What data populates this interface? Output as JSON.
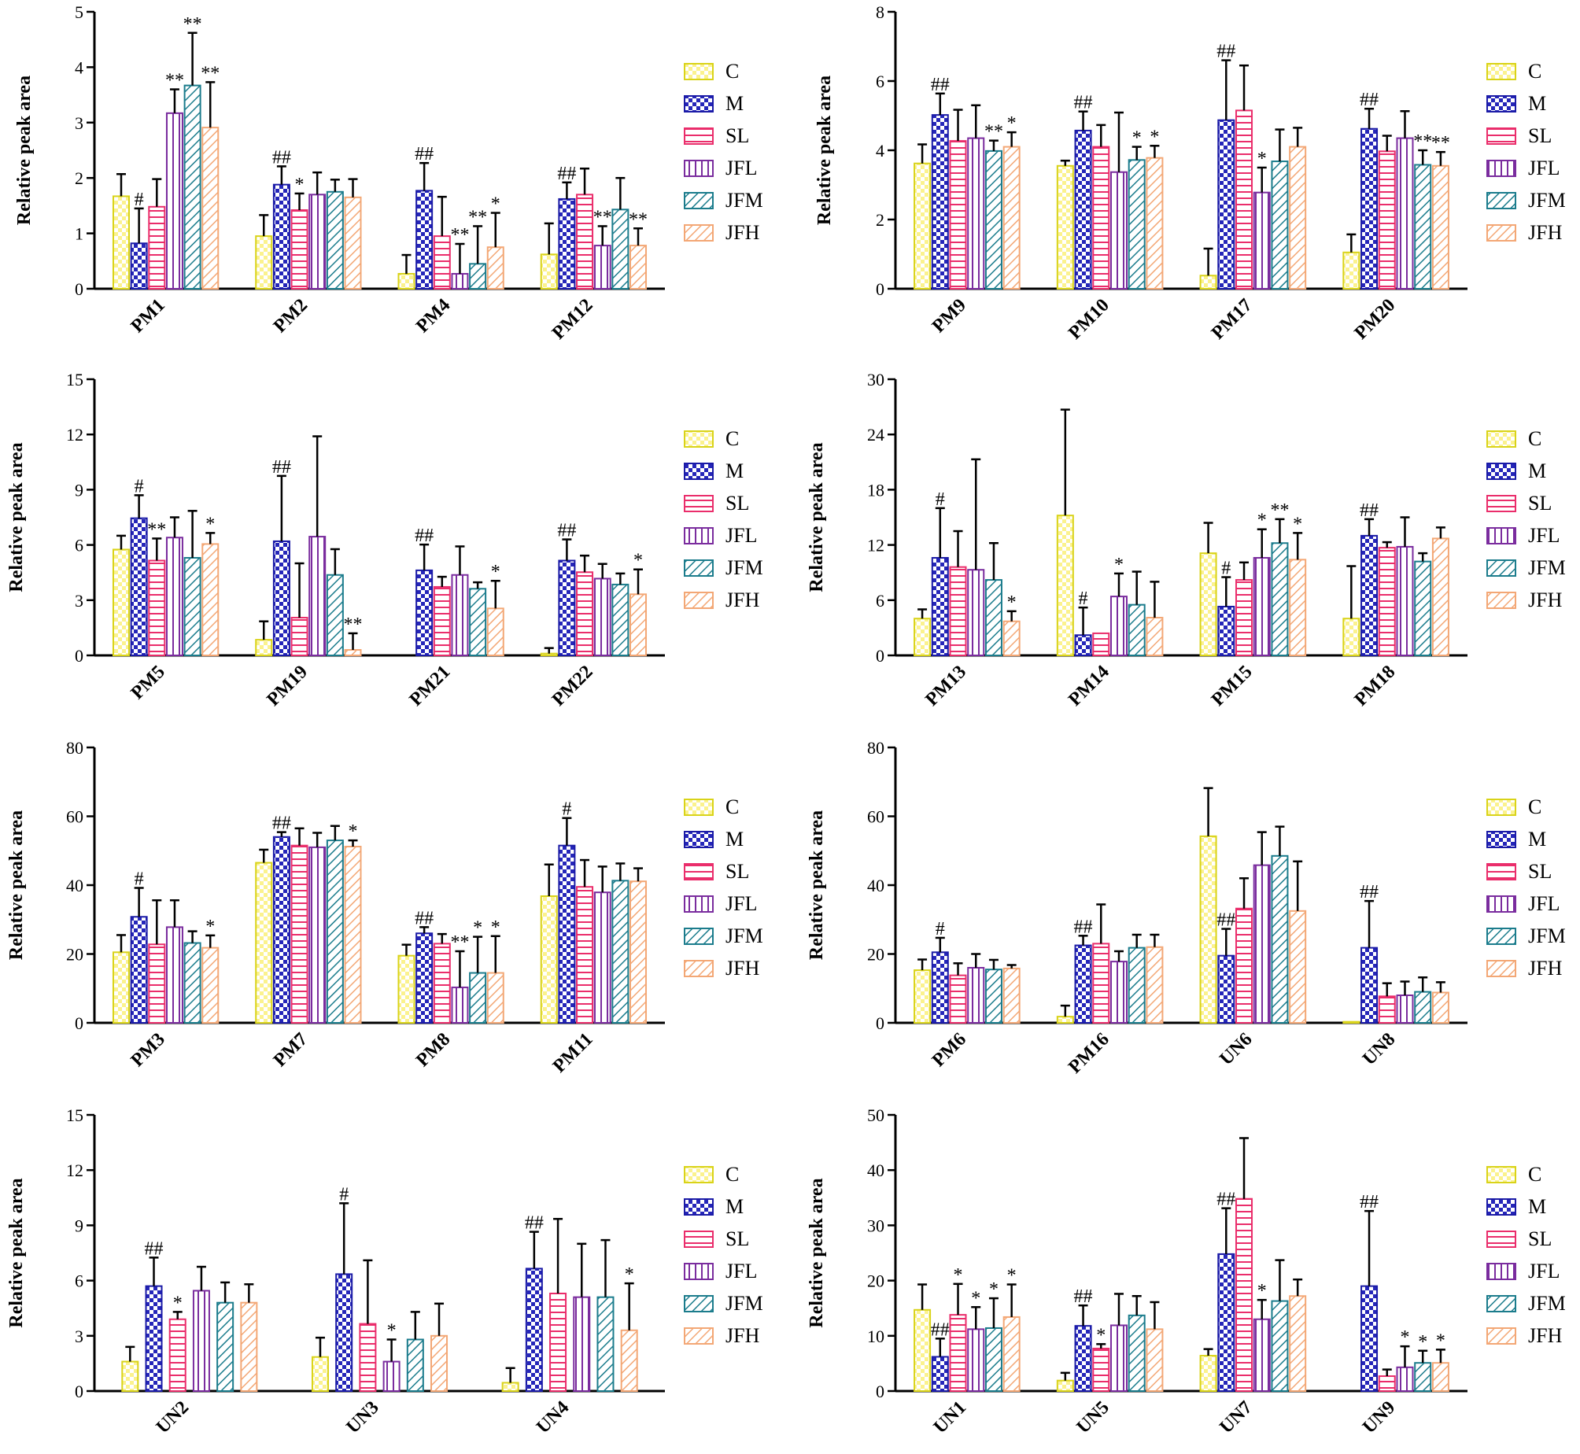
{
  "figure": {
    "legend_entries": [
      "C",
      "M",
      "SL",
      "JFL",
      "JFM",
      "JFH"
    ]
  },
  "styles": {
    "C": {
      "stroke": "#d9d319",
      "fill": "#fbf28e",
      "pattern": "checker"
    },
    "M": {
      "stroke": "#1a1aa6",
      "fill": "#2526b9",
      "pattern": "checker-dark"
    },
    "SL": {
      "stroke": "#ea2d6b",
      "fill": "#ffffff",
      "pattern": "hlines"
    },
    "JFL": {
      "stroke": "#7a2c9e",
      "fill": "#ffffff",
      "pattern": "vlines"
    },
    "JFM": {
      "stroke": "#1b7c8c",
      "fill": "#ffffff",
      "pattern": "diag"
    },
    "JFH": {
      "stroke": "#f3a775",
      "fill": "#ffffff",
      "pattern": "diag"
    }
  },
  "chart_data": [
    {
      "type": "bar",
      "ylabel": "Relative peak area",
      "ylim": [
        0,
        5
      ],
      "yticks": [
        0,
        1,
        2,
        3,
        4,
        5
      ],
      "categories": [
        "PM1",
        "PM2",
        "PM4",
        "PM12"
      ],
      "series": [
        {
          "name": "C",
          "values": [
            1.67,
            0.95,
            0.27,
            0.62
          ],
          "errors": [
            0.4,
            0.38,
            0.34,
            0.56
          ],
          "labels": [
            "",
            "",
            "",
            ""
          ]
        },
        {
          "name": "M",
          "values": [
            0.82,
            1.88,
            1.77,
            1.62
          ],
          "errors": [
            0.63,
            0.33,
            0.5,
            0.3
          ],
          "labels": [
            "#",
            "##",
            "##",
            "##"
          ]
        },
        {
          "name": "SL",
          "values": [
            1.48,
            1.42,
            0.95,
            1.7
          ],
          "errors": [
            0.5,
            0.3,
            0.71,
            0.47
          ],
          "labels": [
            "",
            "*",
            "",
            ""
          ]
        },
        {
          "name": "JFL",
          "values": [
            3.17,
            1.7,
            0.27,
            0.78
          ],
          "errors": [
            0.43,
            0.4,
            0.54,
            0.35
          ],
          "labels": [
            "**",
            "",
            "**",
            "**"
          ]
        },
        {
          "name": "JFM",
          "values": [
            3.67,
            1.75,
            0.45,
            1.43
          ],
          "errors": [
            0.95,
            0.22,
            0.68,
            0.57
          ],
          "labels": [
            "**",
            "",
            "**",
            ""
          ]
        },
        {
          "name": "JFH",
          "values": [
            2.91,
            1.65,
            0.75,
            0.78
          ],
          "errors": [
            0.82,
            0.33,
            0.62,
            0.31
          ],
          "labels": [
            "**",
            "",
            "*",
            "**"
          ]
        }
      ]
    },
    {
      "type": "bar",
      "ylabel": "Relative peak area",
      "ylim": [
        0,
        8
      ],
      "yticks": [
        0,
        2,
        4,
        6,
        8
      ],
      "categories": [
        "PM9",
        "PM10",
        "PM17",
        "PM20"
      ],
      "series": [
        {
          "name": "C",
          "values": [
            3.62,
            3.55,
            0.38,
            1.05
          ],
          "errors": [
            0.55,
            0.15,
            0.78,
            0.52
          ],
          "labels": [
            "",
            "",
            "",
            ""
          ]
        },
        {
          "name": "M",
          "values": [
            5.02,
            4.57,
            4.87,
            4.62
          ],
          "errors": [
            0.62,
            0.55,
            1.73,
            0.58
          ],
          "labels": [
            "##",
            "##",
            "##",
            "##"
          ]
        },
        {
          "name": "SL",
          "values": [
            4.27,
            4.1,
            5.15,
            3.97
          ],
          "errors": [
            0.9,
            0.63,
            1.3,
            0.45
          ],
          "labels": [
            "",
            "",
            "",
            ""
          ]
        },
        {
          "name": "JFL",
          "values": [
            4.35,
            3.37,
            2.78,
            4.35
          ],
          "errors": [
            0.95,
            1.72,
            0.72,
            0.78
          ],
          "labels": [
            "",
            "",
            "*",
            ""
          ]
        },
        {
          "name": "JFM",
          "values": [
            3.98,
            3.72,
            3.68,
            3.58
          ],
          "errors": [
            0.3,
            0.38,
            0.92,
            0.42
          ],
          "labels": [
            "**",
            "*",
            "",
            "**"
          ]
        },
        {
          "name": "JFH",
          "values": [
            4.1,
            3.78,
            4.1,
            3.55
          ],
          "errors": [
            0.42,
            0.35,
            0.55,
            0.4
          ],
          "labels": [
            "*",
            "*",
            "",
            "**"
          ]
        }
      ]
    },
    {
      "type": "bar",
      "ylabel": "Relative peak area",
      "ylim": [
        0,
        15
      ],
      "yticks": [
        0,
        3,
        6,
        9,
        12,
        15
      ],
      "categories": [
        "PM5",
        "PM19",
        "PM21",
        "PM22"
      ],
      "series": [
        {
          "name": "C",
          "values": [
            5.75,
            0.85,
            0.0,
            0.1
          ],
          "errors": [
            0.75,
            1.0,
            0.0,
            0.3
          ],
          "labels": [
            "",
            "",
            "",
            ""
          ]
        },
        {
          "name": "M",
          "values": [
            7.45,
            6.2,
            4.62,
            5.15
          ],
          "errors": [
            1.25,
            3.55,
            1.4,
            1.15
          ],
          "labels": [
            "#",
            "##",
            "##",
            "##"
          ]
        },
        {
          "name": "SL",
          "values": [
            5.15,
            2.05,
            3.72,
            4.52
          ],
          "errors": [
            1.2,
            2.95,
            0.55,
            0.9
          ],
          "labels": [
            "**",
            "",
            "",
            ""
          ]
        },
        {
          "name": "JFL",
          "values": [
            6.4,
            6.45,
            4.37,
            4.17
          ],
          "errors": [
            1.1,
            5.45,
            1.55,
            0.8
          ],
          "labels": [
            "",
            "",
            "",
            ""
          ]
        },
        {
          "name": "JFM",
          "values": [
            5.3,
            4.37,
            3.62,
            3.85
          ],
          "errors": [
            2.55,
            1.4,
            0.35,
            0.6
          ],
          "labels": [
            "",
            "",
            "",
            ""
          ]
        },
        {
          "name": "JFH",
          "values": [
            6.05,
            0.3,
            2.55,
            3.32
          ],
          "errors": [
            0.6,
            0.9,
            1.5,
            1.35
          ],
          "labels": [
            "*",
            "**",
            "*",
            "*"
          ]
        }
      ]
    },
    {
      "type": "bar",
      "ylabel": "Relative peak area",
      "ylim": [
        0,
        30
      ],
      "yticks": [
        0,
        6,
        12,
        18,
        24,
        30
      ],
      "categories": [
        "PM13",
        "PM14",
        "PM15",
        "PM18"
      ],
      "series": [
        {
          "name": "C",
          "values": [
            4.0,
            15.2,
            11.1,
            4.0
          ],
          "errors": [
            1.0,
            11.5,
            3.3,
            5.7
          ],
          "labels": [
            "",
            "",
            "",
            ""
          ]
        },
        {
          "name": "M",
          "values": [
            10.6,
            2.2,
            5.3,
            13.0
          ],
          "errors": [
            5.4,
            3.0,
            3.2,
            1.8
          ],
          "labels": [
            "#",
            "#",
            "#",
            "##"
          ]
        },
        {
          "name": "SL",
          "values": [
            9.6,
            2.4,
            8.2,
            11.7
          ],
          "errors": [
            3.9,
            0.0,
            1.9,
            0.6
          ],
          "labels": [
            "",
            "",
            "",
            ""
          ]
        },
        {
          "name": "JFL",
          "values": [
            9.3,
            6.4,
            10.6,
            11.8
          ],
          "errors": [
            12.0,
            2.5,
            3.1,
            3.2
          ],
          "labels": [
            "",
            "*",
            "*",
            ""
          ]
        },
        {
          "name": "JFM",
          "values": [
            8.2,
            5.5,
            12.2,
            10.2
          ],
          "errors": [
            4.0,
            3.6,
            2.6,
            0.9
          ],
          "labels": [
            "",
            "",
            "**",
            ""
          ]
        },
        {
          "name": "JFH",
          "values": [
            3.7,
            4.1,
            10.4,
            12.7
          ],
          "errors": [
            1.1,
            3.9,
            2.9,
            1.2
          ],
          "labels": [
            "*",
            "",
            "*",
            ""
          ]
        }
      ]
    },
    {
      "type": "bar",
      "ylabel": "Relative peak area",
      "ylim": [
        0,
        80
      ],
      "yticks": [
        0,
        20,
        40,
        60,
        80
      ],
      "categories": [
        "PM3",
        "PM7",
        "PM8",
        "PM11"
      ],
      "series": [
        {
          "name": "C",
          "values": [
            20.5,
            46.5,
            19.5,
            36.8
          ],
          "errors": [
            5.0,
            3.8,
            3.2,
            9.2
          ],
          "labels": [
            "",
            "",
            "",
            ""
          ]
        },
        {
          "name": "M",
          "values": [
            30.8,
            54.0,
            26.0,
            51.5
          ],
          "errors": [
            8.4,
            1.4,
            1.8,
            8.0
          ],
          "labels": [
            "#",
            "##",
            "##",
            "#"
          ]
        },
        {
          "name": "SL",
          "values": [
            22.8,
            51.5,
            23.0,
            39.5
          ],
          "errors": [
            12.8,
            5.0,
            2.8,
            7.8
          ],
          "labels": [
            "",
            "",
            "",
            ""
          ]
        },
        {
          "name": "JFL",
          "values": [
            27.8,
            51.0,
            10.3,
            37.9
          ],
          "errors": [
            7.8,
            4.2,
            10.5,
            7.5
          ],
          "labels": [
            "",
            "",
            "**",
            ""
          ]
        },
        {
          "name": "JFM",
          "values": [
            23.2,
            53.0,
            14.5,
            41.3
          ],
          "errors": [
            3.4,
            4.2,
            10.5,
            5.0
          ],
          "labels": [
            "",
            "",
            "*",
            ""
          ]
        },
        {
          "name": "JFH",
          "values": [
            21.8,
            51.2,
            14.5,
            41.1
          ],
          "errors": [
            3.6,
            1.8,
            10.7,
            3.8
          ],
          "labels": [
            "*",
            "*",
            "*",
            ""
          ]
        }
      ]
    },
    {
      "type": "bar",
      "ylabel": "Relative peak area",
      "ylim": [
        0,
        80
      ],
      "yticks": [
        0,
        20,
        40,
        60,
        80
      ],
      "categories": [
        "PM6",
        "PM16",
        "UN6",
        "UN8"
      ],
      "series": [
        {
          "name": "C",
          "values": [
            15.3,
            1.8,
            54.2,
            0.3
          ],
          "errors": [
            3.1,
            3.2,
            14.0,
            0.0
          ],
          "labels": [
            "",
            "",
            "",
            ""
          ]
        },
        {
          "name": "M",
          "values": [
            20.5,
            22.5,
            19.5,
            21.8
          ],
          "errors": [
            4.2,
            2.8,
            7.8,
            13.6
          ],
          "labels": [
            "#",
            "##",
            "##",
            "##"
          ]
        },
        {
          "name": "SL",
          "values": [
            13.8,
            23.0,
            33.2,
            7.7
          ],
          "errors": [
            3.5,
            11.4,
            8.8,
            3.8
          ],
          "labels": [
            "",
            "",
            "",
            ""
          ]
        },
        {
          "name": "JFL",
          "values": [
            16.0,
            17.8,
            45.8,
            8.0
          ],
          "errors": [
            4.0,
            3.0,
            9.6,
            4.0
          ],
          "labels": [
            "",
            "",
            "",
            ""
          ]
        },
        {
          "name": "JFM",
          "values": [
            15.5,
            21.8,
            48.5,
            9.0
          ],
          "errors": [
            2.8,
            3.8,
            8.5,
            4.2
          ],
          "labels": [
            "",
            "",
            "",
            ""
          ]
        },
        {
          "name": "JFH",
          "values": [
            15.8,
            22.0,
            32.5,
            8.8
          ],
          "errors": [
            1.0,
            3.6,
            14.4,
            3.0
          ],
          "labels": [
            "",
            "",
            "",
            ""
          ]
        }
      ]
    },
    {
      "type": "bar",
      "ylabel": "Relative peak area",
      "ylim": [
        0,
        15
      ],
      "yticks": [
        0,
        3,
        6,
        9,
        12,
        15
      ],
      "categories": [
        "UN2",
        "UN3",
        "UN4"
      ],
      "series": [
        {
          "name": "C",
          "values": [
            1.6,
            1.85,
            0.45
          ],
          "errors": [
            0.8,
            1.05,
            0.8
          ],
          "labels": [
            "",
            "",
            ""
          ]
        },
        {
          "name": "M",
          "values": [
            5.7,
            6.35,
            6.65
          ],
          "errors": [
            1.55,
            3.85,
            2.0
          ],
          "labels": [
            "##",
            "#",
            "##"
          ]
        },
        {
          "name": "SL",
          "values": [
            3.9,
            3.65,
            5.3
          ],
          "errors": [
            0.4,
            3.45,
            4.05
          ],
          "labels": [
            "*",
            "",
            ""
          ]
        },
        {
          "name": "JFL",
          "values": [
            5.45,
            1.6,
            5.1
          ],
          "errors": [
            1.3,
            1.2,
            2.9
          ],
          "labels": [
            "",
            "*",
            ""
          ]
        },
        {
          "name": "JFM",
          "values": [
            4.8,
            2.8,
            5.1
          ],
          "errors": [
            1.1,
            1.5,
            3.1
          ],
          "labels": [
            "",
            "",
            ""
          ]
        },
        {
          "name": "JFH",
          "values": [
            4.8,
            3.0,
            3.3
          ],
          "errors": [
            1.0,
            1.75,
            2.55
          ],
          "labels": [
            "",
            "",
            "*"
          ]
        }
      ]
    },
    {
      "type": "bar",
      "ylabel": "Relative peak area",
      "ylim": [
        0,
        50
      ],
      "yticks": [
        0,
        10,
        20,
        30,
        40,
        50
      ],
      "categories": [
        "UN1",
        "UN5",
        "UN7",
        "UN9"
      ],
      "series": [
        {
          "name": "C",
          "values": [
            14.7,
            1.9,
            6.4,
            0.0
          ],
          "errors": [
            4.6,
            1.4,
            1.2,
            0.0
          ],
          "labels": [
            "",
            "",
            "",
            ""
          ]
        },
        {
          "name": "M",
          "values": [
            6.2,
            11.8,
            24.8,
            19.0
          ],
          "errors": [
            3.3,
            3.7,
            8.3,
            13.6
          ],
          "labels": [
            "##",
            "##",
            "##",
            "##"
          ]
        },
        {
          "name": "SL",
          "values": [
            13.8,
            7.7,
            34.8,
            2.7
          ],
          "errors": [
            5.6,
            0.8,
            11.0,
            1.2
          ],
          "labels": [
            "*",
            "*",
            "",
            ""
          ]
        },
        {
          "name": "JFL",
          "values": [
            11.2,
            11.9,
            13.0,
            4.3
          ],
          "errors": [
            4.0,
            5.7,
            3.5,
            3.8
          ],
          "labels": [
            "*",
            "",
            "*",
            "*"
          ]
        },
        {
          "name": "JFM",
          "values": [
            11.4,
            13.7,
            16.3,
            5.1
          ],
          "errors": [
            5.4,
            3.5,
            7.4,
            2.2
          ],
          "labels": [
            "*",
            "",
            "",
            "*"
          ]
        },
        {
          "name": "JFH",
          "values": [
            13.4,
            11.2,
            17.2,
            5.1
          ],
          "errors": [
            5.9,
            4.9,
            3.0,
            2.4
          ],
          "labels": [
            "*",
            "",
            "",
            "*"
          ]
        }
      ]
    }
  ]
}
